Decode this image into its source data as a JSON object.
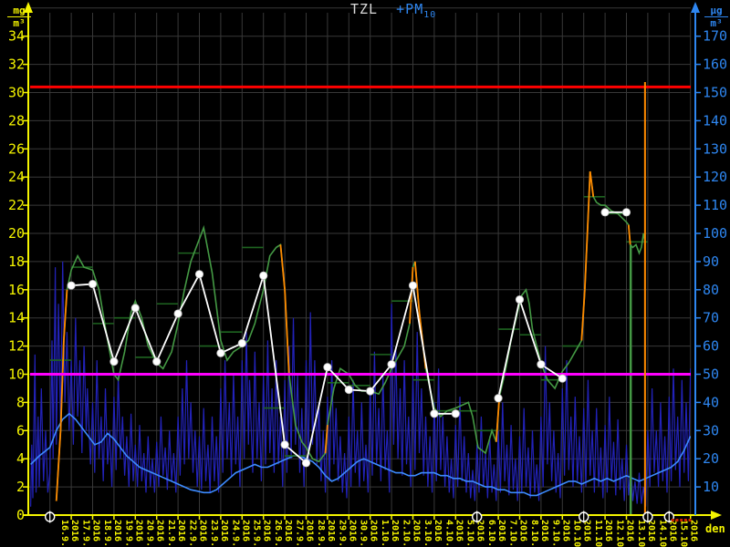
{
  "title": {
    "left_series": "TZL",
    "right_series": "+PM",
    "right_series_sub": "10"
  },
  "units": {
    "left_num": "mg",
    "left_den": "m³",
    "right_num": "µg",
    "right_den": "m³"
  },
  "x_axis_label": "den",
  "colors": {
    "axis_left": "#f5f500",
    "axis_right": "#2e86f0",
    "grid": "#383838",
    "title_main": "#dcdcdc",
    "title_pm": "#2e86f0",
    "red_limit": "#ff0000",
    "magenta_limit": "#ff00ff",
    "green_series": "#449944",
    "dark_green_steps": "#1e6420",
    "steep_orange": "#ff8a00",
    "white_series": "#ffffff",
    "dark_blue_series": "#2222b8",
    "bright_blue_series": "#3d8bff",
    "missing_marker": "#ffffff",
    "invalid_dots": "#cc2200"
  },
  "chart_data": {
    "type": "line",
    "title": "TZL +PM10",
    "x": {
      "label": "den",
      "year": "2016",
      "dates": [
        "16.9.",
        "17.9.",
        "18.9.",
        "19.9.",
        "20.9.",
        "21.9.",
        "22.9.",
        "23.9.",
        "24.9.",
        "25.9.",
        "26.9.",
        "27.9.",
        "28.9.",
        "29.9.",
        "30.9.",
        "1.10.",
        "2.10.",
        "3.10.",
        "4.10.",
        "5.10.",
        "6.10.",
        "7.10.",
        "8.10.",
        "9.10.",
        "10.10.",
        "11.10.",
        "12.10.",
        "13.10.",
        "14.10.",
        "15.10."
      ]
    },
    "y_left": {
      "unit": "mg/m3",
      "min": 0,
      "max": 36,
      "ticks": [
        0,
        2,
        4,
        6,
        8,
        10,
        12,
        14,
        16,
        18,
        20,
        22,
        24,
        26,
        28,
        30,
        32,
        34
      ]
    },
    "y_right": {
      "unit": "ug/m3",
      "min": 0,
      "max": 180,
      "ticks": [
        10,
        20,
        30,
        40,
        50,
        60,
        70,
        80,
        90,
        100,
        110,
        120,
        130,
        140,
        150,
        160,
        170
      ]
    },
    "limit_lines": [
      {
        "name": "red-limit",
        "value_ug": 152,
        "color": "#ff0000"
      },
      {
        "name": "magenta-limit",
        "value_ug": 50,
        "color": "#ff00ff"
      }
    ],
    "white_daily_mg": [
      16.3,
      16.4,
      10.9,
      14.7,
      10.9,
      14.3,
      17.1,
      11.5,
      12.2,
      17,
      5,
      3.7,
      10.5,
      8.9,
      8.8,
      10.7,
      16.3,
      7.2,
      7.2,
      null,
      8.3,
      15.3,
      10.7,
      9.7,
      null,
      21.5,
      21.5,
      null,
      null,
      null
    ],
    "daily_steps_ug": [
      55,
      88,
      68,
      70,
      56,
      75,
      93,
      60,
      65,
      95,
      38,
      21,
      50,
      47,
      46,
      57,
      76,
      48,
      37,
      37,
      30,
      66,
      64,
      48,
      60,
      113,
      107,
      97
    ],
    "green_hourly_ug": [
      0.3,
      5,
      0.5,
      30,
      0.65,
      62,
      0.8,
      80,
      1,
      87,
      1.3,
      92,
      1.6,
      88,
      2,
      87,
      2.3,
      80,
      2.7,
      62,
      3,
      50,
      3.2,
      48,
      3.5,
      58,
      3.8,
      72,
      4,
      76,
      4.3,
      70,
      4.6,
      60,
      5,
      54,
      5.3,
      52,
      5.7,
      58,
      6,
      68,
      6.3,
      80,
      6.6,
      90,
      7,
      98,
      7.2,
      102,
      7.4,
      94,
      7.6,
      86,
      8,
      62,
      8.3,
      55,
      8.6,
      58,
      9,
      60,
      9.3,
      62,
      9.6,
      68,
      10,
      80,
      10.3,
      92,
      10.6,
      95,
      10.8,
      96,
      11,
      80,
      11.2,
      50,
      11.5,
      32,
      11.8,
      26,
      12,
      24,
      12.3,
      20,
      12.6,
      19,
      12.9,
      22,
      13,
      32,
      13.3,
      45,
      13.6,
      52,
      14,
      50,
      14.3,
      46,
      14.6,
      44,
      15,
      44,
      15.4,
      43,
      15.7,
      47,
      16,
      52,
      16.3,
      56,
      16.6,
      60,
      16.85,
      68,
      17,
      88,
      17.1,
      90,
      17.3,
      72,
      17.6,
      52,
      18,
      38,
      18.3,
      35,
      18.6,
      37,
      19,
      38,
      19.3,
      39,
      19.6,
      40,
      19.8,
      35,
      20.05,
      24,
      20.4,
      22,
      20.7,
      30,
      20.9,
      26,
      21.05,
      42,
      21.3,
      50,
      21.6,
      62,
      21.9,
      72,
      22.1,
      78,
      22.3,
      80,
      22.45,
      75,
      22.6,
      66,
      23,
      54,
      23.3,
      48,
      23.65,
      45,
      24,
      51,
      24.3,
      54,
      24.6,
      58,
      24.9,
      62,
      25.05,
      80,
      25.2,
      105,
      25.3,
      122,
      25.45,
      113,
      25.6,
      111,
      25.8,
      110,
      26,
      110,
      26.3,
      108,
      26.6,
      107,
      27,
      104,
      27.1,
      103,
      27.18,
      96,
      27.3,
      95,
      27.45,
      96,
      27.6,
      93,
      27.7,
      95,
      27.8,
      100,
      27.87,
      97
    ],
    "steep_threshold_ug_per_day": 60,
    "bright_blue_ug": [
      -0.9,
      18,
      -0.5,
      21,
      0,
      24,
      0.3,
      30,
      0.6,
      34,
      0.9,
      36,
      1.2,
      34,
      1.5,
      31,
      1.8,
      28,
      2.1,
      25,
      2.4,
      26,
      2.7,
      29,
      3,
      27,
      3.3,
      24,
      3.6,
      21,
      3.9,
      19,
      4.2,
      17,
      4.5,
      16,
      4.8,
      15,
      5.1,
      14,
      5.4,
      13,
      5.7,
      12,
      6,
      11,
      6.3,
      10,
      6.6,
      9,
      6.9,
      8.5,
      7.2,
      8,
      7.5,
      8,
      7.8,
      9,
      8.1,
      11,
      8.4,
      13,
      8.7,
      15,
      9,
      16,
      9.3,
      17,
      9.6,
      18,
      9.9,
      17,
      10.2,
      17,
      10.5,
      18,
      10.8,
      19,
      11.1,
      20,
      11.4,
      21,
      11.7,
      21,
      12,
      20,
      12.3,
      19,
      12.6,
      17,
      12.9,
      14,
      13.2,
      12,
      13.5,
      13,
      13.8,
      15,
      14.1,
      17,
      14.4,
      19,
      14.7,
      20,
      15,
      19,
      15.3,
      18,
      15.6,
      17,
      15.9,
      16,
      16.2,
      15,
      16.5,
      15,
      16.8,
      14,
      17.1,
      14,
      17.4,
      15,
      17.7,
      15,
      18,
      15,
      18.3,
      14,
      18.6,
      14,
      18.9,
      13,
      19.2,
      13,
      19.5,
      12,
      19.8,
      12,
      20.1,
      11,
      20.4,
      10,
      20.7,
      10,
      21,
      9,
      21.3,
      9,
      21.6,
      8,
      21.9,
      8,
      22.2,
      8,
      22.5,
      7,
      22.8,
      7,
      23.1,
      8,
      23.4,
      9,
      23.7,
      10,
      24,
      11,
      24.3,
      12,
      24.6,
      12,
      24.9,
      11,
      25.2,
      12,
      25.5,
      13,
      25.8,
      12,
      26.1,
      13,
      26.4,
      12,
      26.7,
      13,
      27,
      14,
      27.3,
      13,
      27.6,
      12,
      27.9,
      13,
      28.2,
      14,
      28.5,
      15,
      28.8,
      16,
      29.1,
      17,
      29.4,
      19,
      29.7,
      23,
      30,
      28
    ],
    "dark_blue_ug": [
      -0.9,
      3,
      -0.85,
      25,
      -0.8,
      6,
      -0.7,
      57,
      -0.65,
      8,
      -0.55,
      35,
      -0.5,
      10,
      -0.4,
      45,
      -0.3,
      12,
      -0.2,
      30,
      -0.1,
      8,
      0,
      15,
      0.1,
      62,
      0.15,
      20,
      0.25,
      88,
      0.3,
      25,
      0.4,
      75,
      0.5,
      30,
      0.6,
      90,
      0.7,
      40,
      0.8,
      65,
      0.9,
      30,
      1,
      55,
      1.1,
      25,
      1.2,
      70,
      1.3,
      35,
      1.4,
      55,
      1.5,
      22,
      1.6,
      60,
      1.7,
      30,
      1.75,
      45,
      1.9,
      18,
      2,
      40,
      2.1,
      15,
      2.2,
      55,
      2.3,
      20,
      2.4,
      35,
      2.5,
      12,
      2.6,
      45,
      2.7,
      18,
      2.8,
      30,
      2.9,
      10,
      3,
      42,
      3.1,
      16,
      3.2,
      50,
      3.3,
      20,
      3.4,
      35,
      3.5,
      14,
      3.6,
      28,
      3.7,
      10,
      3.8,
      36,
      3.9,
      12,
      4,
      25,
      4.1,
      10,
      4.2,
      32,
      4.3,
      12,
      4.4,
      22,
      4.5,
      8,
      4.6,
      28,
      4.7,
      10,
      4.8,
      20,
      4.9,
      8,
      5,
      26,
      5.1,
      10,
      5.2,
      35,
      5.3,
      14,
      5.4,
      24,
      5.5,
      9,
      5.6,
      30,
      5.7,
      12,
      5.8,
      22,
      5.9,
      8,
      6,
      35,
      6.1,
      14,
      6.2,
      45,
      6.3,
      18,
      6.4,
      55,
      6.5,
      20,
      6.6,
      40,
      6.7,
      15,
      6.8,
      30,
      6.9,
      10,
      7,
      28,
      7.1,
      9,
      7.2,
      38,
      7.3,
      12,
      7.4,
      25,
      7.5,
      8,
      7.6,
      35,
      7.7,
      12,
      7.8,
      28,
      7.9,
      8,
      8,
      45,
      8.1,
      15,
      8.2,
      55,
      8.3,
      20,
      8.4,
      40,
      8.5,
      14,
      8.6,
      50,
      8.7,
      18,
      8.8,
      35,
      8.9,
      10,
      9,
      55,
      9.1,
      20,
      9.2,
      65,
      9.3,
      25,
      9.35,
      48,
      9.5,
      15,
      9.6,
      58,
      9.7,
      20,
      9.8,
      40,
      9.9,
      12,
      10,
      50,
      10.1,
      18,
      10.2,
      62,
      10.3,
      22,
      10.4,
      45,
      10.5,
      15,
      10.6,
      55,
      10.7,
      18,
      10.8,
      35,
      10.9,
      10,
      11,
      48,
      11.1,
      15,
      11.2,
      60,
      11.3,
      20,
      11.4,
      70,
      11.5,
      25,
      11.6,
      50,
      11.7,
      15,
      11.8,
      38,
      11.9,
      10,
      12,
      55,
      12.1,
      18,
      12.2,
      72,
      12.3,
      25,
      12.4,
      55,
      12.5,
      18,
      12.6,
      40,
      12.7,
      12,
      12.8,
      30,
      12.9,
      8,
      13,
      42,
      13.1,
      12,
      13.2,
      55,
      13.3,
      18,
      13.4,
      38,
      13.5,
      12,
      13.6,
      28,
      13.7,
      8,
      13.8,
      22,
      13.9,
      6,
      14,
      35,
      14.1,
      10,
      14.2,
      48,
      14.3,
      15,
      14.4,
      30,
      14.5,
      10,
      14.6,
      40,
      14.7,
      12,
      14.8,
      25,
      14.9,
      8,
      15,
      45,
      15.1,
      14,
      15.2,
      58,
      15.3,
      18,
      15.4,
      38,
      15.5,
      12,
      15.6,
      50,
      15.7,
      16,
      15.8,
      30,
      15.9,
      8,
      16,
      75,
      16.1,
      25,
      16.2,
      60,
      16.3,
      20,
      16.4,
      45,
      16.5,
      14,
      16.6,
      55,
      16.7,
      18,
      16.8,
      35,
      16.9,
      10,
      17,
      50,
      17.1,
      16,
      17.2,
      65,
      17.3,
      22,
      17.4,
      45,
      17.5,
      14,
      17.6,
      35,
      17.7,
      10,
      17.8,
      28,
      17.9,
      8,
      18,
      40,
      18.1,
      12,
      18.2,
      52,
      18.3,
      16,
      18.4,
      35,
      18.5,
      10,
      18.6,
      28,
      18.7,
      8,
      18.8,
      20,
      18.9,
      6,
      19,
      32,
      19.1,
      10,
      19.2,
      42,
      19.3,
      12,
      19.4,
      28,
      19.5,
      8,
      19.6,
      22,
      19.7,
      6,
      19.8,
      16,
      19.9,
      5,
      20,
      25,
      20.1,
      8,
      20.2,
      35,
      20.3,
      10,
      20.4,
      22,
      20.5,
      6,
      20.6,
      28,
      20.7,
      8,
      20.8,
      18,
      20.9,
      5,
      21,
      30,
      21.1,
      8,
      21.2,
      40,
      21.3,
      12,
      21.4,
      25,
      21.5,
      7,
      21.6,
      32,
      21.7,
      9,
      21.8,
      20,
      21.9,
      5,
      22,
      28,
      22.1,
      8,
      22.2,
      38,
      22.3,
      10,
      22.4,
      24,
      22.5,
      6,
      22.6,
      30,
      22.7,
      8,
      22.8,
      18,
      22.9,
      5,
      23,
      35,
      23.1,
      10,
      23.2,
      60,
      23.3,
      18,
      23.4,
      40,
      23.5,
      12,
      23.6,
      30,
      23.7,
      8,
      23.8,
      22,
      23.9,
      6,
      24,
      45,
      24.1,
      14,
      24.2,
      55,
      24.3,
      16,
      24.4,
      35,
      24.5,
      10,
      24.6,
      42,
      24.7,
      12,
      24.8,
      28,
      24.9,
      8,
      25,
      38,
      25.1,
      10,
      25.2,
      48,
      25.3,
      14,
      25.4,
      30,
      25.5,
      8,
      25.6,
      38,
      25.7,
      10,
      25.8,
      24,
      25.9,
      6,
      26,
      32,
      26.1,
      8,
      26.2,
      42,
      26.3,
      12,
      26.4,
      26,
      26.5,
      7,
      26.6,
      34,
      26.7,
      9,
      26.8,
      20,
      26.9,
      5,
      27,
      25,
      27.1,
      7,
      27.2,
      18,
      27.3,
      5,
      27.4,
      12,
      27.5,
      4,
      27.6,
      15,
      27.7,
      4,
      27.8,
      10,
      27.9,
      3,
      28,
      30,
      28.1,
      10,
      28.2,
      45,
      28.3,
      15,
      28.4,
      30,
      28.5,
      10,
      28.6,
      40,
      28.7,
      12,
      28.8,
      28,
      28.9,
      8,
      29,
      42,
      29.1,
      12,
      29.2,
      52,
      29.3,
      16,
      29.4,
      35,
      29.5,
      10,
      29.6,
      48,
      29.7,
      15,
      29.8,
      40,
      29.9,
      12,
      30,
      52
    ],
    "missing_day_offsets": [
      0,
      20,
      25,
      28,
      29
    ],
    "green_dropline_day": 27.2,
    "green_dropline_top_ug": 96,
    "orange_cursor_day": 27.87,
    "invalid_dots_days": [
      29.15,
      29.35,
      29.55,
      29.75,
      29.95
    ]
  }
}
